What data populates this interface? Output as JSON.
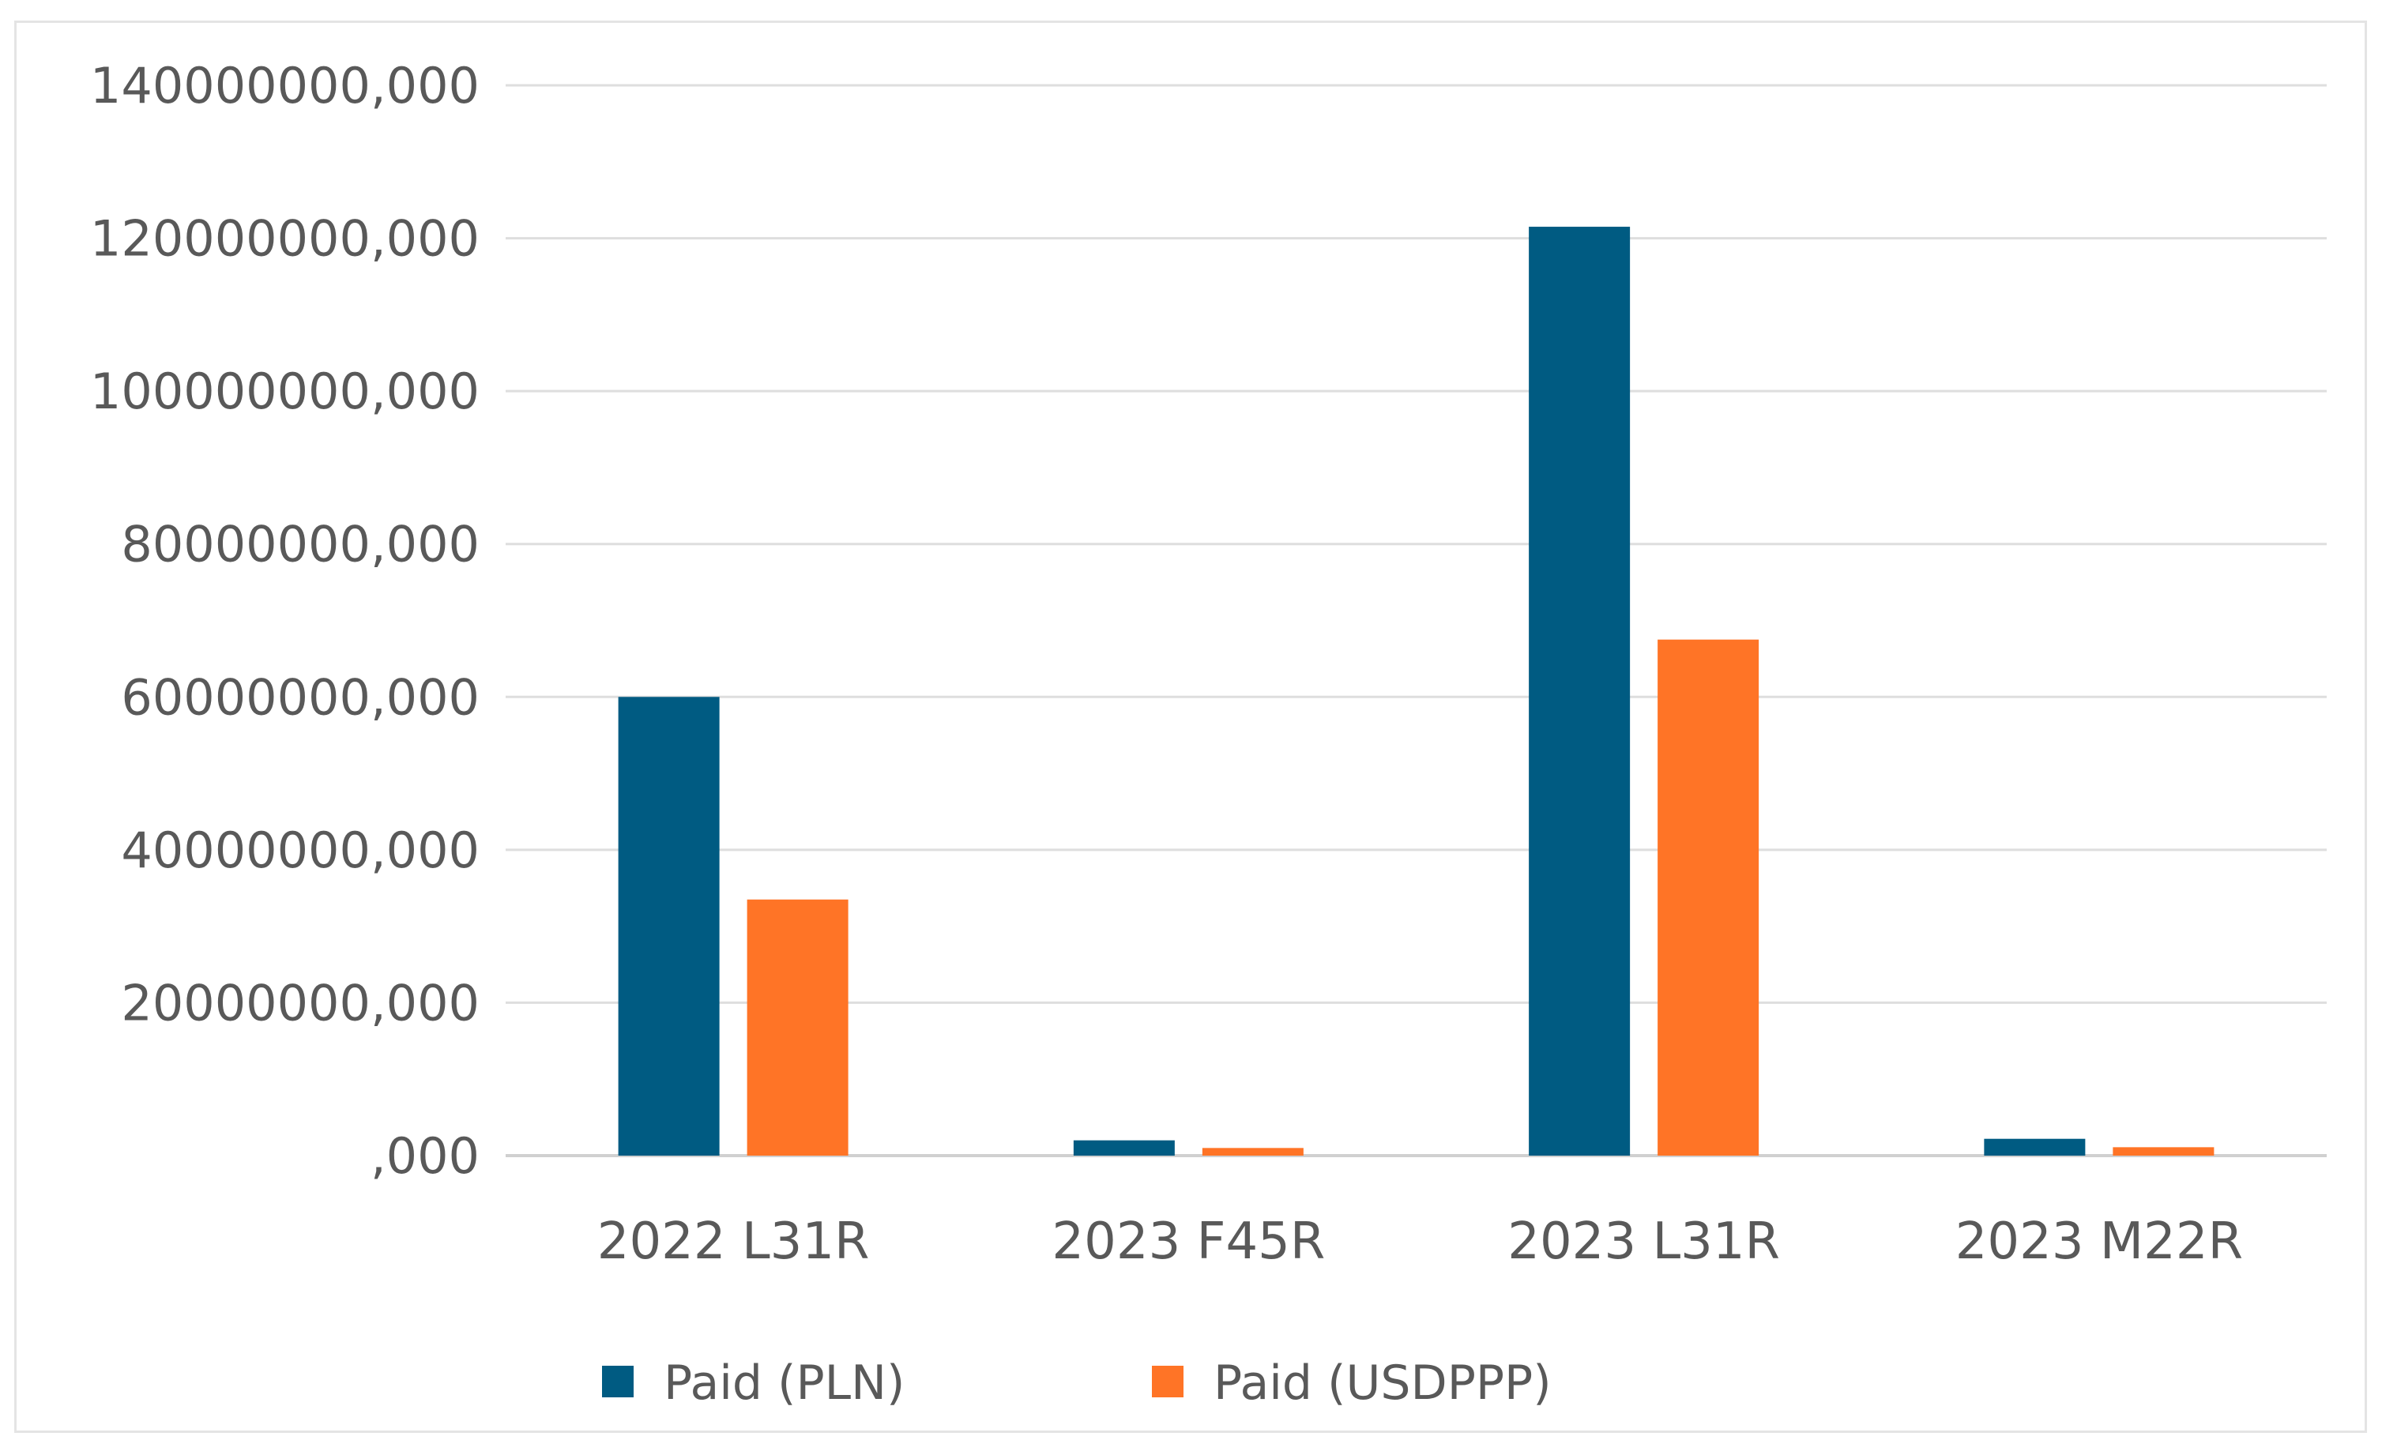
{
  "chart_data": {
    "type": "bar",
    "title": "",
    "xlabel": "",
    "ylabel": "",
    "categories": [
      "2022 L31R",
      "2023 F45R",
      "2023 L31R",
      "2023 M22R"
    ],
    "series": [
      {
        "name": "Paid (PLN)",
        "color": "#005b82",
        "values": [
          60000000,
          2000000,
          121500000,
          2200000
        ]
      },
      {
        "name": "Paid (USDPPP)",
        "color": "#ff7426",
        "values": [
          33500000,
          1000000,
          67500000,
          1100000
        ]
      }
    ],
    "ylim": [
      0,
      140000000
    ],
    "yticks": [
      0,
      20000000,
      40000000,
      60000000,
      80000000,
      100000000,
      120000000,
      140000000
    ],
    "ytick_labels": [
      ",000",
      "20000000,000",
      "40000000,000",
      "60000000,000",
      "80000000,000",
      "100000000,000",
      "120000000,000",
      "140000000,000"
    ],
    "grid": true,
    "legend_position": "bottom"
  }
}
